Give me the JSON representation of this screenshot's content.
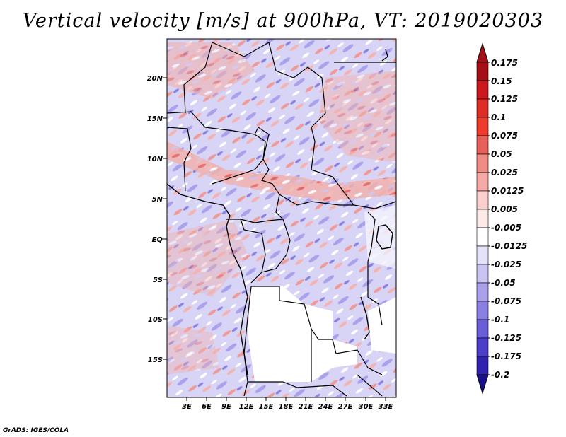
{
  "title": "Vertical velocity [m/s] at 900hPa, VT: 2019020303",
  "credit": "GrADS: IGES/COLA",
  "map": {
    "lat_labels": [
      "20N",
      "15N",
      "10N",
      "5N",
      "EQ",
      "5S",
      "10S",
      "15S"
    ],
    "lon_labels": [
      "3E",
      "6E",
      "9E",
      "12E",
      "15E",
      "18E",
      "21E",
      "24E",
      "27E",
      "30E",
      "33E"
    ]
  },
  "colorbar": {
    "labels": [
      "0.175",
      "0.15",
      "0.125",
      "0.1",
      "0.075",
      "0.05",
      "0.025",
      "0.0125",
      "0.005",
      "-0.005",
      "-0.0125",
      "-0.025",
      "-0.05",
      "-0.075",
      "-0.1",
      "-0.125",
      "-0.175",
      "-0.2"
    ],
    "colors": [
      "#a50f15",
      "#cb181d",
      "#de2d26",
      "#ef3b2c",
      "#e8605a",
      "#f08a84",
      "#f6aaa6",
      "#fbcfcd",
      "#fde9e8",
      "#ffffff",
      "#e4e1fa",
      "#cac4f4",
      "#a9a1ec",
      "#8a7fe3",
      "#6a5dd8",
      "#4b3ec8",
      "#2f22ae",
      "#1a0f8f"
    ]
  }
}
